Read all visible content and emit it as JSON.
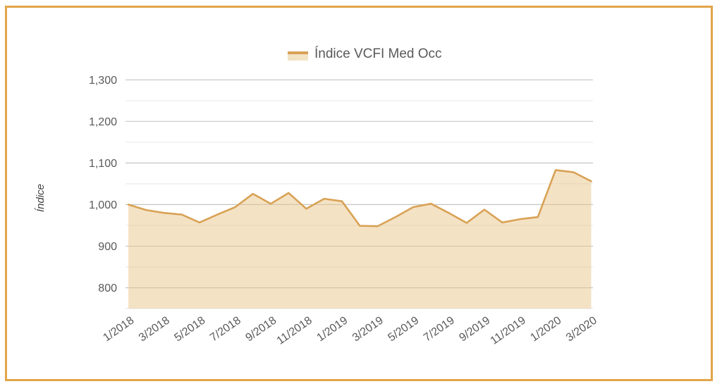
{
  "colors": {
    "frame_border": "#E2A549",
    "line": "#D8A255",
    "area_fill": "rgba(233,197,140,0.50)",
    "grid_major": "#C4C4C4",
    "grid_minor": "#E6E6E6",
    "tick_text": "#595959",
    "axis_title_text": "#404040",
    "legend_text": "#595959",
    "legend_fill_swatch": "#F2E3C4"
  },
  "chart_data": {
    "type": "area",
    "legend_label": "Índice VCFI Med Occ",
    "ylabel": "Índice",
    "x": [
      "1/2018",
      "2/2018",
      "3/2018",
      "4/2018",
      "5/2018",
      "6/2018",
      "7/2018",
      "8/2018",
      "9/2018",
      "10/2018",
      "11/2018",
      "12/2018",
      "1/2019",
      "2/2019",
      "3/2019",
      "4/2019",
      "5/2019",
      "6/2019",
      "7/2019",
      "8/2019",
      "9/2019",
      "10/2019",
      "11/2019",
      "12/2019",
      "1/2020",
      "2/2020",
      "3/2020"
    ],
    "values": [
      1000,
      987,
      980,
      976,
      957,
      976,
      994,
      1026,
      1002,
      1028,
      990,
      1014,
      1008,
      949,
      948,
      970,
      994,
      1002,
      980,
      956,
      988,
      957,
      965,
      970,
      1083,
      1078,
      1056
    ],
    "x_label_every": 2,
    "ylim": [
      750,
      1300
    ],
    "y_tick_values": [
      800,
      900,
      1000,
      1100,
      1200,
      1300
    ],
    "y_tick_labels": [
      "800",
      "900",
      "1,000",
      "1,100",
      "1,200",
      "1,300"
    ],
    "y_minor_gridlines": [
      750,
      850,
      950,
      1050,
      1150,
      1250
    ],
    "grid": "horizontal major + minor",
    "legend_position": "top-center"
  }
}
